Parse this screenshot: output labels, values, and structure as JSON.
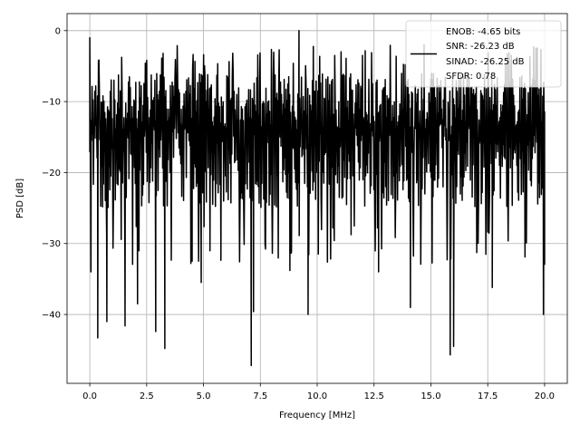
{
  "chart_data": {
    "type": "line",
    "title": "",
    "xlabel": "Frequency [MHz]",
    "ylabel": "PSD [dB]",
    "xlim": [
      -1.0,
      21.0
    ],
    "ylim": [
      -49.7,
      2.4
    ],
    "grid": true,
    "xticks": [
      0.0,
      2.5,
      5.0,
      7.5,
      10.0,
      12.5,
      15.0,
      17.5,
      20.0
    ],
    "xtick_labels": [
      "0.0",
      "2.5",
      "5.0",
      "7.5",
      "10.0",
      "12.5",
      "15.0",
      "17.5",
      "20.0"
    ],
    "yticks": [
      0,
      -10,
      -20,
      -30,
      -40
    ],
    "ytick_labels": [
      "0",
      "−10",
      "−20",
      "−30",
      "−40"
    ],
    "legend": {
      "placement": "top-right",
      "lines": [
        "ENOB: -4.65 bits",
        "SNR: -26.23 dB",
        "SINAD: -26.25 dB",
        "SFDR: 0.78"
      ]
    },
    "series": [
      {
        "name": "PSD",
        "color": "#000000",
        "x_range": [
          0.0,
          20.0
        ],
        "points": 1000,
        "typical_range_db": [
          -27,
          -5
        ],
        "notable_points": [
          {
            "x": 0.0,
            "y": -1.0
          },
          {
            "x": 0.05,
            "y": -34.0
          },
          {
            "x": 0.35,
            "y": -43.3
          },
          {
            "x": 0.75,
            "y": -41.0
          },
          {
            "x": 1.55,
            "y": -41.6
          },
          {
            "x": 2.1,
            "y": -38.5
          },
          {
            "x": 2.9,
            "y": -42.4
          },
          {
            "x": 3.3,
            "y": -44.8
          },
          {
            "x": 4.5,
            "y": -32.5
          },
          {
            "x": 4.9,
            "y": -35.5
          },
          {
            "x": 7.1,
            "y": -47.2
          },
          {
            "x": 7.2,
            "y": -39.6
          },
          {
            "x": 8.8,
            "y": -33.8
          },
          {
            "x": 9.2,
            "y": 0.0
          },
          {
            "x": 9.6,
            "y": -40.0
          },
          {
            "x": 12.7,
            "y": -34.0
          },
          {
            "x": 14.1,
            "y": -39.0
          },
          {
            "x": 14.7,
            "y": -2.0
          },
          {
            "x": 15.85,
            "y": -45.7
          },
          {
            "x": 16.0,
            "y": -44.5
          },
          {
            "x": 17.7,
            "y": -36.2
          },
          {
            "x": 19.95,
            "y": -40.0
          },
          {
            "x": 20.0,
            "y": -33.0
          }
        ]
      }
    ]
  }
}
